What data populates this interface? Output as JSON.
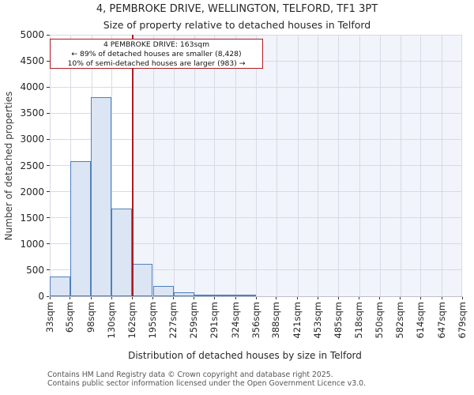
{
  "chart_data": {
    "type": "bar",
    "title": "4, PEMBROKE DRIVE, WELLINGTON, TELFORD, TF1 3PT",
    "subtitle": "Size of property relative to detached houses in Telford",
    "xlabel": "Distribution of detached houses by size in Telford",
    "ylabel": "Number of detached properties",
    "x_tick_labels": [
      "33sqm",
      "65sqm",
      "98sqm",
      "130sqm",
      "162sqm",
      "195sqm",
      "227sqm",
      "259sqm",
      "291sqm",
      "324sqm",
      "356sqm",
      "388sqm",
      "421sqm",
      "453sqm",
      "485sqm",
      "518sqm",
      "550sqm",
      "582sqm",
      "614sqm",
      "647sqm",
      "679sqm"
    ],
    "bin_edges_sqm": [
      33,
      65,
      98,
      130,
      162,
      195,
      227,
      259,
      291,
      324,
      356,
      388,
      421,
      453,
      485,
      518,
      550,
      582,
      614,
      647,
      679
    ],
    "values": [
      380,
      2580,
      3800,
      1670,
      620,
      200,
      80,
      30,
      15,
      10,
      0,
      0,
      0,
      0,
      0,
      0,
      0,
      0,
      0,
      0
    ],
    "ylim": [
      0,
      5000
    ],
    "y_ticks": [
      0,
      500,
      1000,
      1500,
      2000,
      2500,
      3000,
      3500,
      4000,
      4500,
      5000
    ],
    "grid": true,
    "legend": "none",
    "marker_line": {
      "value_sqm": 163
    },
    "annotation": {
      "line1": "4 PEMBROKE DRIVE: 163sqm",
      "line2": "← 89% of detached houses are smaller (8,428)",
      "line3": "10% of semi-detached houses are larger (983) →"
    },
    "colors": {
      "bar_fill": "#dbe5f4",
      "bar_edge": "#4f81bd",
      "marker_line": "#ad1a22",
      "annotation_border": "#ad1a22",
      "shade_right_of_marker": "#f1f4fb",
      "gridline": "#d9d9e3"
    }
  },
  "footer": {
    "line1": "Contains HM Land Registry data © Crown copyright and database right 2025.",
    "line2": "Contains public sector information licensed under the Open Government Licence v3.0."
  }
}
